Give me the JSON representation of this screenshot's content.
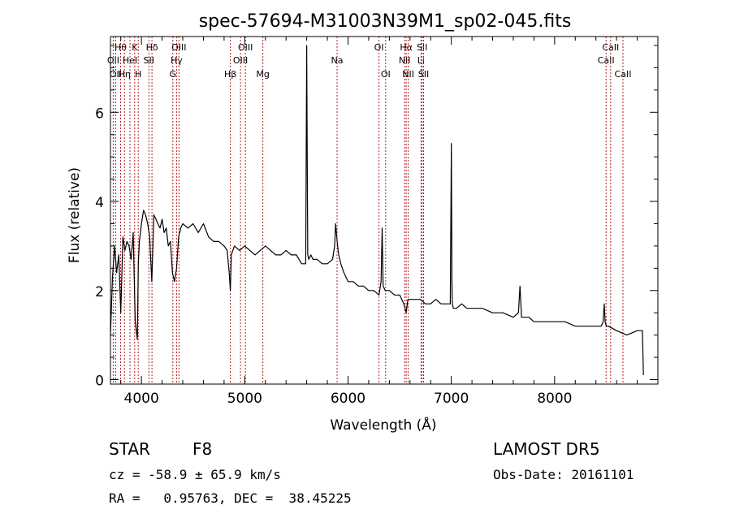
{
  "chart_data": {
    "type": "line",
    "title": "spec-57694-M31003N39M1_sp02-045.fits",
    "xlabel": "Wavelength (Å)",
    "ylabel": "Flux (relative)",
    "xlim": [
      3700,
      9000
    ],
    "ylim": [
      -0.1,
      7.7
    ],
    "x_ticks": [
      4000,
      5000,
      6000,
      7000,
      8000
    ],
    "x_tick_labels": [
      "4000",
      "5000",
      "6000",
      "7000",
      "8000"
    ],
    "y_ticks": [
      0,
      2,
      4,
      6
    ],
    "y_tick_labels": [
      "0",
      "2",
      "4",
      "6"
    ],
    "grid": false,
    "line_color": "#000000",
    "marker_color": "#b22222",
    "series": [
      {
        "x": [
          3700,
          3720,
          3740,
          3760,
          3780,
          3800,
          3820,
          3840,
          3860,
          3880,
          3900,
          3920,
          3940,
          3960,
          3970,
          3980,
          4000,
          4020,
          4040,
          4060,
          4080,
          4100,
          4120,
          4140,
          4160,
          4180,
          4200,
          4220,
          4240,
          4260,
          4280,
          4300,
          4320,
          4340,
          4360,
          4380,
          4400,
          4450,
          4500,
          4550,
          4600,
          4650,
          4700,
          4750,
          4800,
          4830,
          4850,
          4861,
          4870,
          4900,
          4950,
          5000,
          5050,
          5100,
          5150,
          5200,
          5250,
          5300,
          5350,
          5400,
          5450,
          5500,
          5550,
          5590,
          5600,
          5607,
          5610,
          5620,
          5640,
          5660,
          5700,
          5750,
          5800,
          5850,
          5870,
          5880,
          5895,
          5910,
          5930,
          5960,
          6000,
          6050,
          6100,
          6150,
          6200,
          6250,
          6300,
          6320,
          6330,
          6340,
          6360,
          6400,
          6450,
          6500,
          6540,
          6563,
          6580,
          6600,
          6650,
          6700,
          6750,
          6800,
          6850,
          6900,
          6950,
          6990,
          7000,
          7006,
          7010,
          7020,
          7050,
          7100,
          7150,
          7200,
          7300,
          7400,
          7500,
          7600,
          7650,
          7665,
          7680,
          7700,
          7750,
          7800,
          7900,
          8000,
          8100,
          8200,
          8300,
          8400,
          8450,
          8470,
          8480,
          8490,
          8500,
          8520,
          8600,
          8700,
          8800,
          8850,
          8860
        ],
        "y": [
          1.0,
          2.3,
          3.0,
          2.4,
          2.8,
          1.5,
          3.2,
          2.9,
          3.1,
          3.0,
          2.7,
          3.3,
          1.3,
          0.9,
          2.6,
          3.1,
          3.5,
          3.8,
          3.7,
          3.5,
          3.2,
          2.2,
          3.7,
          3.6,
          3.5,
          3.4,
          3.6,
          3.3,
          3.4,
          3.0,
          3.1,
          2.4,
          2.2,
          2.5,
          3.2,
          3.4,
          3.5,
          3.4,
          3.5,
          3.3,
          3.5,
          3.2,
          3.1,
          3.1,
          3.0,
          2.9,
          2.4,
          2.0,
          2.8,
          3.0,
          2.9,
          3.0,
          2.9,
          2.8,
          2.9,
          3.0,
          2.9,
          2.8,
          2.8,
          2.9,
          2.8,
          2.8,
          2.6,
          2.6,
          7.5,
          4.1,
          2.8,
          2.7,
          2.8,
          2.7,
          2.7,
          2.6,
          2.6,
          2.7,
          3.0,
          3.5,
          3.1,
          2.8,
          2.6,
          2.4,
          2.2,
          2.2,
          2.1,
          2.1,
          2.0,
          2.0,
          1.9,
          2.2,
          3.4,
          2.1,
          2.0,
          2.0,
          1.9,
          1.9,
          1.7,
          1.5,
          1.8,
          1.8,
          1.8,
          1.8,
          1.7,
          1.7,
          1.8,
          1.7,
          1.7,
          1.7,
          5.3,
          2.2,
          1.7,
          1.6,
          1.6,
          1.7,
          1.6,
          1.6,
          1.6,
          1.5,
          1.5,
          1.4,
          1.5,
          2.1,
          1.4,
          1.4,
          1.4,
          1.3,
          1.3,
          1.3,
          1.3,
          1.2,
          1.2,
          1.2,
          1.2,
          1.3,
          1.7,
          1.3,
          1.2,
          1.2,
          1.1,
          1.0,
          1.1,
          1.1,
          0.1
        ]
      }
    ],
    "line_markers": [
      {
        "wl": 3727,
        "row": 2,
        "label": "OII"
      },
      {
        "wl": 3750,
        "row": 3,
        "label": "OII"
      },
      {
        "wl": 3798,
        "row": 1,
        "label": "Hθ"
      },
      {
        "wl": 3835,
        "row": 3,
        "label": "Hη"
      },
      {
        "wl": 3889,
        "row": 2,
        "label": "HeI"
      },
      {
        "wl": 3934,
        "row": 1,
        "label": "K"
      },
      {
        "wl": 3969,
        "row": 3,
        "label": "H"
      },
      {
        "wl": 4072,
        "row": 2,
        "label": "SII"
      },
      {
        "wl": 4102,
        "row": 1,
        "label": "Hδ"
      },
      {
        "wl": 4304,
        "row": 3,
        "label": "G"
      },
      {
        "wl": 4340,
        "row": 2,
        "label": "Hγ"
      },
      {
        "wl": 4363,
        "row": 1,
        "label": "OIII"
      },
      {
        "wl": 4861,
        "row": 3,
        "label": "Hβ"
      },
      {
        "wl": 4959,
        "row": 2,
        "label": "OIII"
      },
      {
        "wl": 5007,
        "row": 1,
        "label": "OIII"
      },
      {
        "wl": 5175,
        "row": 3,
        "label": "Mg"
      },
      {
        "wl": 5894,
        "row": 2,
        "label": "Na"
      },
      {
        "wl": 6300,
        "row": 1,
        "label": "OI"
      },
      {
        "wl": 6364,
        "row": 3,
        "label": "OI"
      },
      {
        "wl": 6548,
        "row": 2,
        "label": "NII"
      },
      {
        "wl": 6563,
        "row": 1,
        "label": "Hα"
      },
      {
        "wl": 6583,
        "row": 3,
        "label": "NII"
      },
      {
        "wl": 6707,
        "row": 2,
        "label": "Li"
      },
      {
        "wl": 6717,
        "row": 1,
        "label": "SII"
      },
      {
        "wl": 6731,
        "row": 3,
        "label": "SII"
      },
      {
        "wl": 8498,
        "row": 2,
        "label": "CaII"
      },
      {
        "wl": 8542,
        "row": 1,
        "label": "CaII"
      },
      {
        "wl": 8662,
        "row": 3,
        "label": "CaII"
      }
    ]
  },
  "info": {
    "class": "STAR",
    "subclass": "F8",
    "survey": "LAMOST DR5",
    "cz": "cz = -58.9 ± 65.9 km/s",
    "obs_date": "Obs-Date: 20161101",
    "radec": "RA =   0.95763, DEC =  38.45225"
  }
}
